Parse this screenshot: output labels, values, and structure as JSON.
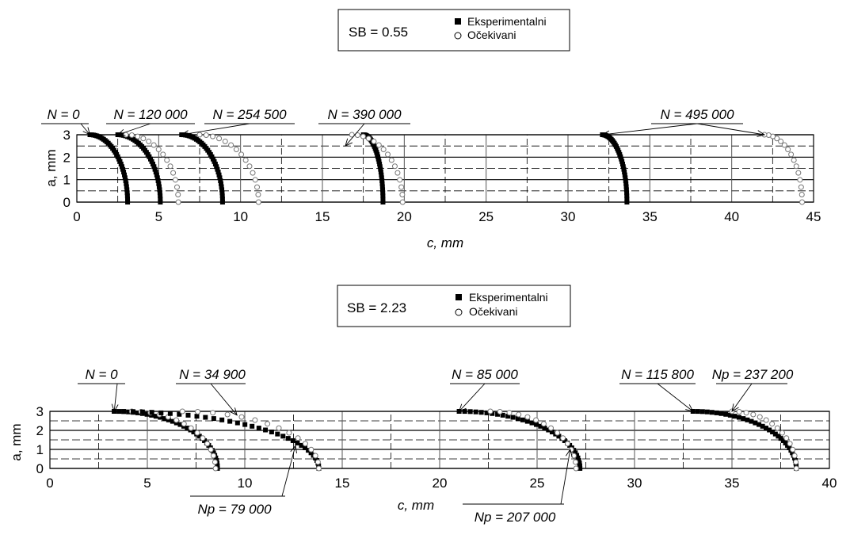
{
  "chart_data": [
    {
      "type": "scatter",
      "legend": {
        "sb_label": "SB = 0.55",
        "entries": [
          "Eksperimentalni",
          "Očekivani"
        ],
        "placement": "top-center"
      },
      "xlabel": "c, mm",
      "ylabel": "a, mm",
      "xlim": [
        0,
        45
      ],
      "ylim": [
        0,
        3
      ],
      "xticks": [
        "0",
        "5",
        "10",
        "15",
        "20",
        "25",
        "30",
        "35",
        "40",
        "45"
      ],
      "yticks": [
        "0",
        "1",
        "2",
        "3"
      ],
      "grid": true,
      "curves": [
        {
          "kind": "experimental",
          "c_at_a0": 3.1,
          "c_at_a3": 0.8
        },
        {
          "kind": "experimental",
          "c_at_a0": 5.1,
          "c_at_a3": 2.5
        },
        {
          "kind": "expected",
          "c_at_a0": 6.2,
          "c_at_a3": 3.0
        },
        {
          "kind": "experimental",
          "c_at_a0": 8.9,
          "c_at_a3": 6.4
        },
        {
          "kind": "expected",
          "c_at_a0": 11.1,
          "c_at_a3": 7.5
        },
        {
          "kind": "experimental",
          "c_at_a0": 18.7,
          "c_at_a3": 17.5
        },
        {
          "kind": "expected",
          "c_at_a0": 19.9,
          "c_at_a3": 16.8
        },
        {
          "kind": "experimental",
          "c_at_a0": 33.6,
          "c_at_a3": 32.1
        },
        {
          "kind": "expected",
          "c_at_a0": 44.3,
          "c_at_a3": 42.0
        }
      ],
      "annotations": [
        {
          "label": "N = 0",
          "c": 0.8,
          "a": 3
        },
        {
          "label": "N = 120 000",
          "c": 2.5,
          "a": 3
        },
        {
          "label": "N = 254 500",
          "c": 6.4,
          "a": 3
        },
        {
          "label": "N = 390 000",
          "c": 16.4,
          "a": 2.5
        },
        {
          "label": "N = 495 000",
          "c": 32.1,
          "a": 3
        },
        {
          "label": "",
          "c": 42.0,
          "a": 3
        }
      ]
    },
    {
      "type": "scatter",
      "legend": {
        "sb_label": "SB = 2.23",
        "entries": [
          "Eksperimentalni",
          "Očekivani"
        ],
        "placement": "top-center"
      },
      "xlabel": "c, mm",
      "ylabel": "a, mm",
      "xlim": [
        0,
        40
      ],
      "ylim": [
        0,
        3
      ],
      "xticks": [
        "0",
        "5",
        "10",
        "15",
        "20",
        "25",
        "30",
        "35",
        "40"
      ],
      "yticks": [
        "0",
        "1",
        "2",
        "3"
      ],
      "grid": true,
      "curves": [
        {
          "kind": "experimental",
          "c_at_a0": 8.6,
          "c_at_a3": 3.3
        },
        {
          "kind": "expected",
          "c_at_a0": 8.5,
          "c_at_a3": 4.2
        },
        {
          "kind": "experimental",
          "c_at_a0": 13.8,
          "c_at_a3": 3.3
        },
        {
          "kind": "expected",
          "c_at_a0": 13.8,
          "c_at_a3": 6.8
        },
        {
          "kind": "experimental",
          "c_at_a0": 27.2,
          "c_at_a3": 21.0
        },
        {
          "kind": "expected",
          "c_at_a0": 27.0,
          "c_at_a3": 22.6
        },
        {
          "kind": "experimental",
          "c_at_a0": 38.3,
          "c_at_a3": 33.0
        },
        {
          "kind": "expected",
          "c_at_a0": 38.3,
          "c_at_a3": 35.0
        }
      ],
      "annotations": [
        {
          "label": "N = 0",
          "c": 3.3,
          "a": 3
        },
        {
          "label": "N = 34 900",
          "c": 9.6,
          "a": 2.8
        },
        {
          "label": "N = 85 000",
          "c": 21.0,
          "a": 3
        },
        {
          "label": "N = 115 800",
          "c": 33.0,
          "a": 3
        },
        {
          "label": "Np = 237 200",
          "c": 35.0,
          "a": 3
        },
        {
          "label": "Np = 79 000",
          "c": 12.6,
          "a": 1.2
        },
        {
          "label": "Np = 207 000",
          "c": 26.7,
          "a": 1.0
        }
      ]
    }
  ]
}
